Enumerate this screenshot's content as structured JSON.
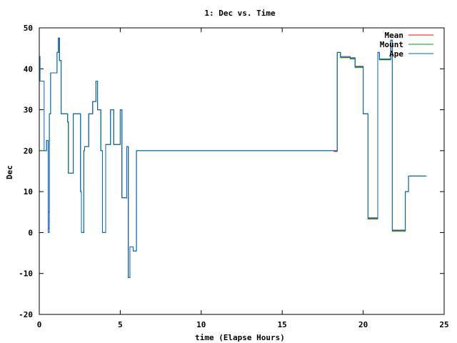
{
  "chart_data": {
    "type": "line",
    "title": "1: Dec vs. Time",
    "xlabel": "time (Elapse Hours)",
    "ylabel": "Dec",
    "xlim": [
      0,
      25
    ],
    "ylim": [
      -20,
      50
    ],
    "xticks": [
      0,
      5,
      10,
      15,
      20,
      25
    ],
    "yticks": [
      -20,
      -10,
      0,
      10,
      20,
      30,
      40,
      50
    ],
    "grid": false,
    "legend_position": "top-right",
    "series": [
      {
        "name": "Mean",
        "color": "#ff0000",
        "x": [
          0.0,
          0.05,
          0.3,
          0.45,
          0.55,
          0.62,
          0.7,
          1.05,
          1.1,
          1.18,
          1.25,
          1.35,
          1.7,
          1.75,
          1.8,
          2.0,
          2.1,
          2.5,
          2.55,
          2.6,
          2.68,
          2.75,
          2.8,
          3.0,
          3.05,
          3.3,
          3.5,
          3.6,
          3.8,
          3.9,
          4.0,
          4.1,
          4.3,
          4.4,
          4.6,
          4.8,
          5.0,
          5.1,
          5.3,
          5.4,
          5.5,
          5.6,
          5.8,
          6.0,
          15.5,
          18.2,
          18.4,
          18.6,
          18.8,
          19.2,
          19.5,
          19.6,
          20.0,
          20.3,
          20.5,
          20.9,
          21.0,
          21.2,
          21.7,
          21.8,
          21.85,
          22.4,
          22.6,
          22.8,
          23.0,
          23.9
        ],
        "y": [
          20,
          20,
          20,
          22.5,
          1,
          29,
          39,
          39,
          44,
          47.5,
          42,
          29,
          29,
          27,
          14.5,
          14.5,
          29,
          29,
          10,
          0,
          0,
          20,
          21,
          21,
          29,
          32,
          37,
          30,
          20,
          0,
          0,
          21.5,
          21.5,
          30,
          21.5,
          21.5,
          30,
          8.5,
          8.5,
          21,
          -11,
          -3.5,
          -4.5,
          20,
          20,
          19.8,
          44,
          42.8,
          42.8,
          42.5,
          40.5,
          40.5,
          29,
          3.5,
          3.5,
          44,
          42.3,
          42.3,
          47,
          0.5,
          0.5,
          0.5,
          10,
          13.8,
          13.8,
          13.8
        ]
      },
      {
        "name": "Mount",
        "color": "#00a000",
        "x": [
          0.0,
          0.05,
          0.3,
          0.45,
          0.55,
          0.62,
          0.7,
          1.05,
          1.1,
          1.18,
          1.25,
          1.35,
          1.7,
          1.75,
          1.8,
          2.0,
          2.1,
          2.5,
          2.55,
          2.6,
          2.68,
          2.75,
          2.8,
          3.0,
          3.05,
          3.3,
          3.5,
          3.6,
          3.8,
          3.9,
          4.0,
          4.1,
          4.3,
          4.4,
          4.6,
          4.8,
          5.0,
          5.1,
          5.3,
          5.4,
          5.5,
          5.6,
          5.8,
          6.0,
          15.5,
          18.2,
          18.4,
          18.6,
          18.8,
          19.2,
          19.5,
          19.6,
          20.0,
          20.3,
          20.5,
          20.9,
          21.0,
          21.2,
          21.7,
          21.8,
          21.85,
          22.4,
          22.6,
          22.8,
          23.0,
          23.9
        ],
        "y": [
          20,
          20,
          20,
          22.5,
          5,
          29,
          39,
          39,
          44,
          47.5,
          42,
          29,
          29,
          27,
          14.5,
          14.5,
          29,
          29,
          10,
          0,
          0,
          20,
          21,
          21,
          29,
          32,
          37,
          30,
          20,
          0,
          0,
          21.5,
          21.5,
          30,
          21.5,
          21.5,
          30,
          8.5,
          8.5,
          21,
          -11,
          -3.5,
          -4.5,
          20,
          20,
          20,
          44,
          42.7,
          42.7,
          42.4,
          40.3,
          40.3,
          29,
          3.3,
          3.3,
          44,
          42.2,
          42.2,
          47,
          0.3,
          0.3,
          0.3,
          10,
          13.8,
          13.8,
          13.8
        ]
      },
      {
        "name": "Ape",
        "color": "#0066cc",
        "x": [
          0.0,
          0.05,
          0.3,
          0.45,
          0.55,
          0.62,
          0.7,
          1.05,
          1.1,
          1.18,
          1.25,
          1.35,
          1.7,
          1.75,
          1.8,
          2.0,
          2.1,
          2.5,
          2.55,
          2.6,
          2.68,
          2.75,
          2.8,
          3.0,
          3.05,
          3.3,
          3.5,
          3.6,
          3.8,
          3.9,
          4.0,
          4.1,
          4.3,
          4.4,
          4.6,
          4.8,
          5.0,
          5.1,
          5.3,
          5.4,
          5.5,
          5.6,
          5.8,
          6.0,
          15.5,
          18.2,
          18.4,
          18.6,
          18.8,
          19.2,
          19.5,
          19.6,
          20.0,
          20.3,
          20.5,
          20.9,
          21.0,
          21.2,
          21.7,
          21.8,
          21.85,
          22.4,
          22.6,
          22.8,
          23.0,
          23.9
        ],
        "y": [
          43,
          37,
          20,
          22.5,
          0,
          29,
          39,
          39,
          44,
          47.5,
          42,
          29,
          29,
          27,
          14.5,
          14.5,
          29,
          29,
          10,
          0,
          0,
          20,
          21,
          21,
          29,
          32,
          37,
          30,
          20,
          0,
          0,
          21.5,
          21.5,
          30,
          21.5,
          21.5,
          30,
          8.5,
          8.5,
          21,
          -11,
          -3.5,
          -4.5,
          20,
          20,
          20,
          44,
          43,
          43,
          42.7,
          40.6,
          40.6,
          29,
          3.6,
          3.6,
          44,
          42.4,
          42.4,
          47,
          0.6,
          0.6,
          0.6,
          10,
          13.8,
          13.8,
          13.8
        ]
      }
    ]
  }
}
